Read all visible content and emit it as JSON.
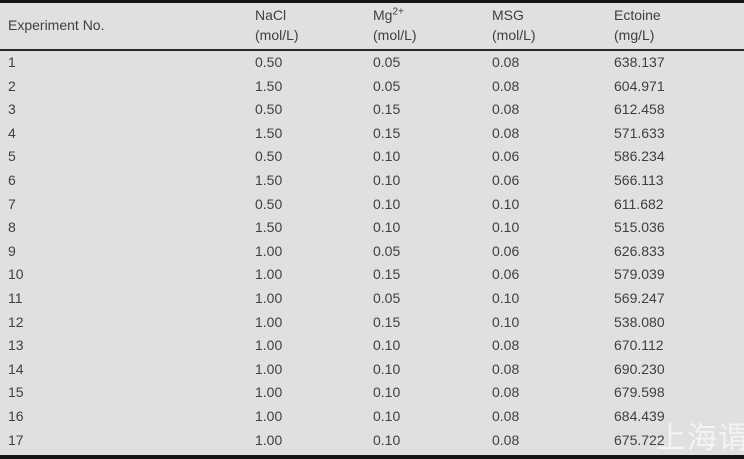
{
  "table": {
    "headers": [
      {
        "label": "Experiment No.",
        "sup": "",
        "unit": ""
      },
      {
        "label": "NaCl",
        "sup": "",
        "unit": "(mol/L)"
      },
      {
        "label": "Mg",
        "sup": "2+",
        "unit": "(mol/L)"
      },
      {
        "label": "MSG",
        "sup": "",
        "unit": "(mol/L)"
      },
      {
        "label": "Ectoine",
        "sup": "",
        "unit": "(mg/L)"
      }
    ],
    "rows": [
      [
        "1",
        "0.50",
        "0.05",
        "0.08",
        "638.137"
      ],
      [
        "2",
        "1.50",
        "0.05",
        "0.08",
        "604.971"
      ],
      [
        "3",
        "0.50",
        "0.15",
        "0.08",
        "612.458"
      ],
      [
        "4",
        "1.50",
        "0.15",
        "0.08",
        "571.633"
      ],
      [
        "5",
        "0.50",
        "0.10",
        "0.06",
        "586.234"
      ],
      [
        "6",
        "1.50",
        "0.10",
        "0.06",
        "566.113"
      ],
      [
        "7",
        "0.50",
        "0.10",
        "0.10",
        "611.682"
      ],
      [
        "8",
        "1.50",
        "0.10",
        "0.10",
        "515.036"
      ],
      [
        "9",
        "1.00",
        "0.05",
        "0.06",
        "626.833"
      ],
      [
        "10",
        "1.00",
        "0.15",
        "0.06",
        "579.039"
      ],
      [
        "11",
        "1.00",
        "0.05",
        "0.10",
        "569.247"
      ],
      [
        "12",
        "1.00",
        "0.15",
        "0.10",
        "538.080"
      ],
      [
        "13",
        "1.00",
        "0.10",
        "0.08",
        "670.112"
      ],
      [
        "14",
        "1.00",
        "0.10",
        "0.08",
        "690.230"
      ],
      [
        "15",
        "1.00",
        "0.10",
        "0.08",
        "679.598"
      ],
      [
        "16",
        "1.00",
        "0.10",
        "0.08",
        "684.439"
      ],
      [
        "17",
        "1.00",
        "0.10",
        "0.08",
        "675.722"
      ]
    ]
  },
  "watermark": {
    "text": "上海谓教"
  },
  "colors": {
    "background": "#e0e0e0",
    "text": "#3f3f3f",
    "border": "#151515",
    "header_rule": "#2b2b2b",
    "watermark": "rgba(255,255,255,0.65)"
  }
}
